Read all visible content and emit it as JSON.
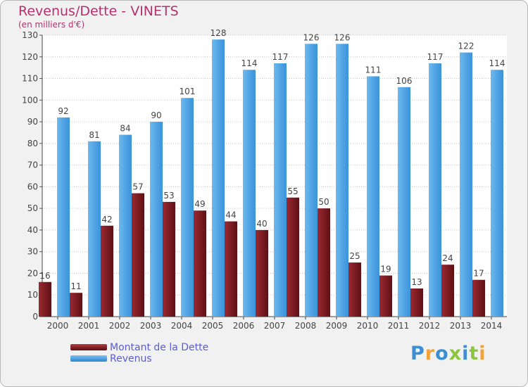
{
  "header": {
    "title": "Revenus/Dette - VINETS",
    "subtitle": "(en milliers d'€)"
  },
  "chart_data": {
    "type": "bar",
    "categories": [
      "2000",
      "2001",
      "2002",
      "2003",
      "2004",
      "2005",
      "2006",
      "2007",
      "2008",
      "2009",
      "2010",
      "2011",
      "2012",
      "2013",
      "2014"
    ],
    "series": [
      {
        "name": "Montant de la Dette",
        "color": "#7a1c22",
        "values": [
          16,
          11,
          42,
          57,
          53,
          49,
          44,
          40,
          55,
          50,
          25,
          19,
          13,
          24,
          17
        ]
      },
      {
        "name": "Revenus",
        "color": "#4aa3e6",
        "values": [
          92,
          81,
          84,
          90,
          101,
          128,
          114,
          117,
          126,
          126,
          111,
          106,
          117,
          122,
          114
        ]
      }
    ],
    "ylim": [
      0,
      130
    ],
    "yticks": [
      0,
      10,
      20,
      30,
      40,
      50,
      60,
      70,
      80,
      90,
      100,
      110,
      120,
      130
    ],
    "grid": true,
    "legend_position": "bottom-left"
  },
  "legend": {
    "items": [
      {
        "label": "Montant de la Dette",
        "color": "#7a1c22"
      },
      {
        "label": "Revenus",
        "color": "#4aa3e6"
      }
    ]
  },
  "logo": {
    "letters": [
      {
        "ch": "P",
        "color": "#3d8fd1"
      },
      {
        "ch": "r",
        "color": "#f2a23b"
      },
      {
        "ch": "o",
        "color": "#3d8fd1"
      },
      {
        "ch": "x",
        "color": "#8cc63f"
      },
      {
        "ch": "i",
        "color": "#3d8fd1"
      },
      {
        "ch": "t",
        "color": "#8cc63f"
      },
      {
        "ch": "i",
        "color": "#f2a23b"
      }
    ]
  }
}
